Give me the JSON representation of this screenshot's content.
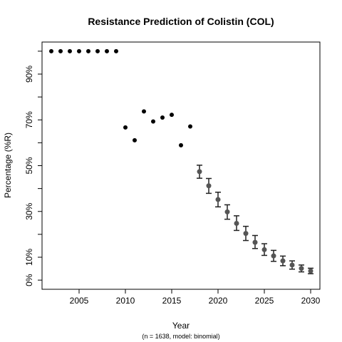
{
  "chart_data": {
    "type": "scatter",
    "title": "Resistance Prediction of Colistin (COL)",
    "xlabel": "Year",
    "ylabel": "Percentage (%R)",
    "caption": "(n = 1638, model: binomial)",
    "xlim": [
      2001,
      2031
    ],
    "ylim": [
      -4,
      104
    ],
    "x_ticks": [
      2005,
      2010,
      2015,
      2020,
      2025,
      2030
    ],
    "x_tick_labels": [
      "2005",
      "2010",
      "2015",
      "2020",
      "2025",
      "2030"
    ],
    "y_ticks": [
      0,
      10,
      30,
      50,
      70,
      90
    ],
    "y_tick_labels": [
      "0%",
      "10%",
      "30%",
      "50%",
      "70%",
      "90%"
    ],
    "y_minor_ticks": [
      20,
      40,
      60,
      80,
      100
    ],
    "grid": false,
    "series": [
      {
        "kind": "observed",
        "color": "#000000",
        "points": [
          {
            "x": 2002,
            "y": 100
          },
          {
            "x": 2003,
            "y": 100
          },
          {
            "x": 2004,
            "y": 100
          },
          {
            "x": 2005,
            "y": 100
          },
          {
            "x": 2006,
            "y": 100
          },
          {
            "x": 2007,
            "y": 100
          },
          {
            "x": 2008,
            "y": 100
          },
          {
            "x": 2009,
            "y": 100
          },
          {
            "x": 2010,
            "y": 66.7
          },
          {
            "x": 2011,
            "y": 61.1
          },
          {
            "x": 2012,
            "y": 73.7
          },
          {
            "x": 2013,
            "y": 69.3
          },
          {
            "x": 2014,
            "y": 71.0
          },
          {
            "x": 2015,
            "y": 72.2
          },
          {
            "x": 2016,
            "y": 58.9
          },
          {
            "x": 2017,
            "y": 67.1
          }
        ]
      },
      {
        "kind": "predicted",
        "color": "#555555",
        "points": [
          {
            "x": 2018,
            "y": 47.4,
            "lower": 44.5,
            "upper": 50.2
          },
          {
            "x": 2019,
            "y": 41.2,
            "lower": 37.9,
            "upper": 44.4
          },
          {
            "x": 2020,
            "y": 35.2,
            "lower": 32.0,
            "upper": 38.4
          },
          {
            "x": 2021,
            "y": 29.8,
            "lower": 26.6,
            "upper": 32.9
          },
          {
            "x": 2022,
            "y": 24.8,
            "lower": 21.7,
            "upper": 28.1
          },
          {
            "x": 2023,
            "y": 20.4,
            "lower": 17.3,
            "upper": 23.5
          },
          {
            "x": 2024,
            "y": 16.5,
            "lower": 13.8,
            "upper": 19.5
          },
          {
            "x": 2025,
            "y": 13.3,
            "lower": 10.8,
            "upper": 15.9
          },
          {
            "x": 2026,
            "y": 10.6,
            "lower": 8.2,
            "upper": 13.0
          },
          {
            "x": 2027,
            "y": 8.4,
            "lower": 6.3,
            "upper": 10.5
          },
          {
            "x": 2028,
            "y": 6.6,
            "lower": 4.8,
            "upper": 8.4
          },
          {
            "x": 2029,
            "y": 5.1,
            "lower": 3.6,
            "upper": 6.6
          },
          {
            "x": 2030,
            "y": 4.0,
            "lower": 2.8,
            "upper": 5.2
          }
        ]
      }
    ]
  }
}
